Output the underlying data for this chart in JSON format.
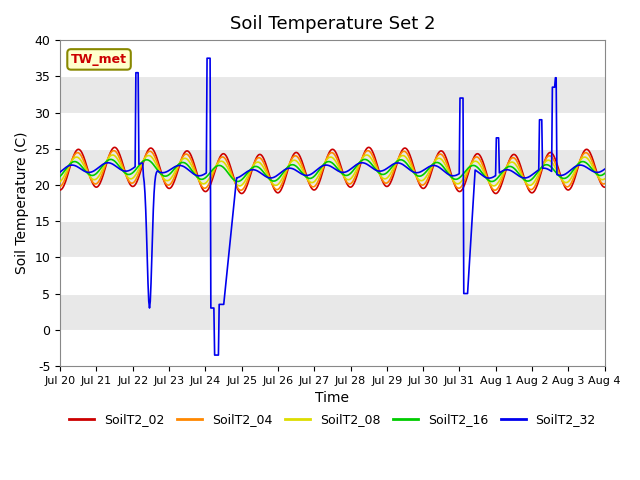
{
  "title": "Soil Temperature Set 2",
  "xlabel": "Time",
  "ylabel": "Soil Temperature (C)",
  "ylim": [
    -5,
    40
  ],
  "yticks": [
    -5,
    0,
    5,
    10,
    15,
    20,
    25,
    30,
    35,
    40
  ],
  "background_color": "#ffffff",
  "plot_bg_color": "#e8e8e8",
  "series_colors": {
    "SoilT2_02": "#cc0000",
    "SoilT2_04": "#ff8800",
    "SoilT2_08": "#dddd00",
    "SoilT2_16": "#00cc00",
    "SoilT2_32": "#0000ee"
  },
  "annotation_text": "TW_met",
  "annotation_color": "#cc0000",
  "annotation_bg": "#ffffcc",
  "annotation_border": "#888800",
  "x_tick_labels": [
    "Jul 20",
    "Jul 21",
    "Jul 22",
    "Jul 23",
    "Jul 24",
    "Jul 25",
    "Jul 26",
    "Jul 27",
    "Jul 28",
    "Jul 29",
    "Jul 30",
    "Jul 31",
    "Aug 1",
    "Aug 2",
    "Aug 3",
    "Aug 4"
  ]
}
